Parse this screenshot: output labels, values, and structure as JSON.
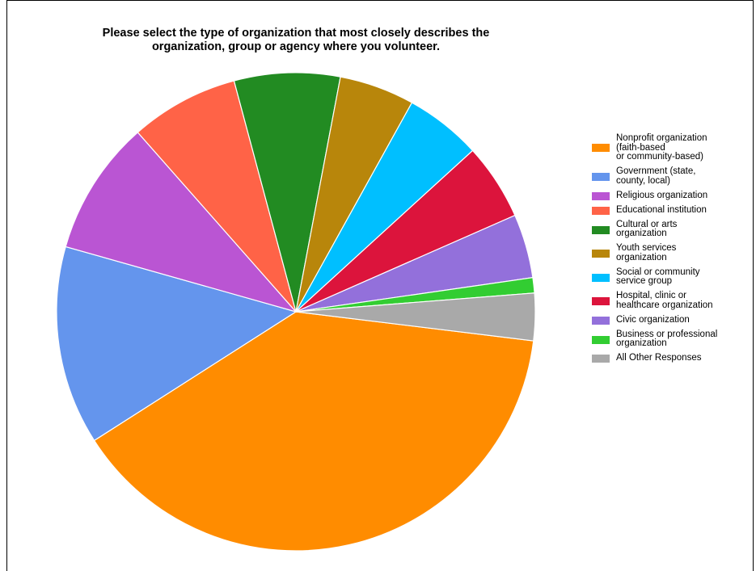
{
  "chart_data": {
    "type": "pie",
    "title": [
      "Please select the type of organization that most closely describes the",
      "organization, group or agency where you volunteer."
    ],
    "start_angle_deg": 7,
    "series": [
      {
        "label_lines": [
          "Nonprofit organization",
          "(faith-based",
          "or community-based)"
        ],
        "value": 41.5,
        "color": "#FF8C00"
      },
      {
        "label_lines": [
          "Government (state,",
          "county, local)"
        ],
        "value": 14.3,
        "color": "#6495ED"
      },
      {
        "label_lines": [
          "Religious organization"
        ],
        "value": 9.7,
        "color": "#BA55D3"
      },
      {
        "label_lines": [
          "Educational institution"
        ],
        "value": 7.8,
        "color": "#FF6347"
      },
      {
        "label_lines": [
          "Cultural or arts",
          "organization"
        ],
        "value": 7.6,
        "color": "#228B22"
      },
      {
        "label_lines": [
          "Youth services",
          "organization"
        ],
        "value": 5.4,
        "color": "#B8860B"
      },
      {
        "label_lines": [
          "Social or community",
          "service group"
        ],
        "value": 5.5,
        "color": "#00BFFF"
      },
      {
        "label_lines": [
          "Hospital, clinic or",
          "healthcare organization"
        ],
        "value": 5.5,
        "color": "#DC143C"
      },
      {
        "label_lines": [
          "Civic organization"
        ],
        "value": 4.6,
        "color": "#9370DB"
      },
      {
        "label_lines": [
          "Business or professional",
          "organization"
        ],
        "value": 1.1,
        "color": "#32CD32"
      },
      {
        "label_lines": [
          "All Other Responses"
        ],
        "value": 3.4,
        "color": "#A9A9A9"
      }
    ],
    "legend_position": "right"
  }
}
